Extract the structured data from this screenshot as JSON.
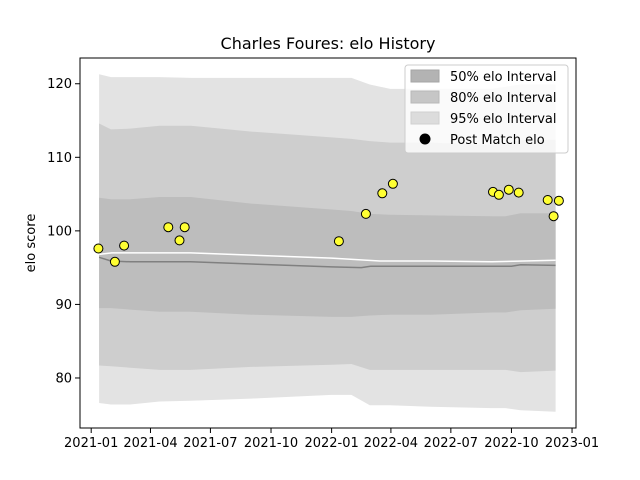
{
  "chart_data": {
    "type": "line",
    "title": "Charles Foures: elo History",
    "xlabel": "",
    "ylabel": "elo score",
    "xlim": [
      "2020-12-15",
      "2023-01-07"
    ],
    "ylim": [
      73.2,
      123.5
    ],
    "x_ticks": [
      "2021-01",
      "2021-04",
      "2021-07",
      "2021-10",
      "2022-01",
      "2022-04",
      "2022-07",
      "2022-10",
      "2023-01"
    ],
    "y_ticks": [
      80,
      90,
      100,
      110,
      120
    ],
    "grid": false,
    "legend": {
      "placement": "top-right",
      "entries": [
        {
          "label": "50% elo Interval",
          "color": "#b3b3b3",
          "kind": "patch"
        },
        {
          "label": "80% elo Interval",
          "color": "#c6c6c6",
          "kind": "patch"
        },
        {
          "label": "95% elo Interval",
          "color": "#dcdcdc",
          "kind": "patch"
        },
        {
          "label": "Post Match elo",
          "color": "#000000",
          "kind": "marker"
        }
      ]
    },
    "band_x": [
      "2021-01-13",
      "2021-01-31",
      "2021-03-01",
      "2021-04-15",
      "2021-06-01",
      "2021-09-01",
      "2022-01-01",
      "2022-01-31",
      "2022-02-28",
      "2022-03-31",
      "2022-05-31",
      "2022-09-01",
      "2022-09-22",
      "2022-10-15",
      "2022-12-07"
    ],
    "bands": {
      "b95": {
        "color": "#e3e3e3",
        "upper": [
          121.3,
          120.9,
          120.9,
          120.9,
          120.8,
          120.8,
          120.8,
          120.8,
          119.9,
          119.3,
          119.3,
          119.3,
          119.6,
          119.9,
          119.9
        ],
        "lower": [
          76.6,
          76.4,
          76.4,
          76.8,
          76.9,
          77.2,
          77.7,
          77.7,
          76.3,
          76.3,
          76.1,
          75.9,
          75.9,
          75.6,
          75.4
        ]
      },
      "b80": {
        "color": "#cecece",
        "upper": [
          114.6,
          113.8,
          113.9,
          114.3,
          114.3,
          113.5,
          112.7,
          112.5,
          112.2,
          112.0,
          112.0,
          111.7,
          112.0,
          112.3,
          112.4
        ],
        "lower": [
          81.7,
          81.6,
          81.4,
          81.1,
          81.1,
          81.5,
          81.8,
          81.9,
          81.1,
          81.1,
          81.1,
          81.1,
          81.1,
          80.8,
          81.0
        ]
      },
      "b50": {
        "color": "#bdbdbd",
        "upper": [
          104.5,
          104.3,
          104.3,
          104.6,
          104.6,
          103.7,
          102.9,
          102.7,
          102.3,
          102.2,
          102.1,
          102.0,
          102.0,
          102.4,
          102.4
        ],
        "lower": [
          89.5,
          89.5,
          89.3,
          89.0,
          89.0,
          88.6,
          88.3,
          88.3,
          88.5,
          88.6,
          88.6,
          88.9,
          88.9,
          89.2,
          89.4
        ]
      }
    },
    "median_line": {
      "color": "#808080",
      "x": [
        "2021-01-13",
        "2021-01-31",
        "2021-03-01",
        "2021-06-01",
        "2021-09-01",
        "2022-01-01",
        "2022-02-15",
        "2022-03-01",
        "2022-06-01",
        "2022-09-01",
        "2022-10-01",
        "2022-10-15",
        "2022-12-07"
      ],
      "y": [
        96.4,
        95.9,
        95.8,
        95.8,
        95.5,
        95.1,
        95.0,
        95.2,
        95.2,
        95.2,
        95.2,
        95.4,
        95.3
      ]
    },
    "mean_line": {
      "color": "#ffffff",
      "x": [
        "2021-01-13",
        "2021-02-01",
        "2021-06-01",
        "2021-09-01",
        "2022-01-01",
        "2022-03-15",
        "2022-06-01",
        "2022-09-01",
        "2022-12-07"
      ],
      "y": [
        96.8,
        97.0,
        97.0,
        96.7,
        96.3,
        95.9,
        95.9,
        95.8,
        96.0
      ]
    },
    "series": [
      {
        "name": "Post Match elo",
        "marker_fill": "#ffff33",
        "marker_edge": "#000000",
        "x": [
          "2021-01-12",
          "2021-02-06",
          "2021-02-20",
          "2021-04-28",
          "2021-05-15",
          "2021-05-23",
          "2022-01-12",
          "2022-02-22",
          "2022-03-19",
          "2022-04-04",
          "2022-09-03",
          "2022-09-12",
          "2022-09-27",
          "2022-10-12",
          "2022-11-25",
          "2022-12-04",
          "2022-12-12"
        ],
        "y": [
          97.6,
          95.8,
          98.0,
          100.5,
          98.7,
          100.5,
          98.6,
          102.3,
          105.1,
          106.4,
          105.3,
          104.9,
          105.6,
          105.2,
          104.2,
          102.0,
          104.1
        ]
      }
    ]
  }
}
